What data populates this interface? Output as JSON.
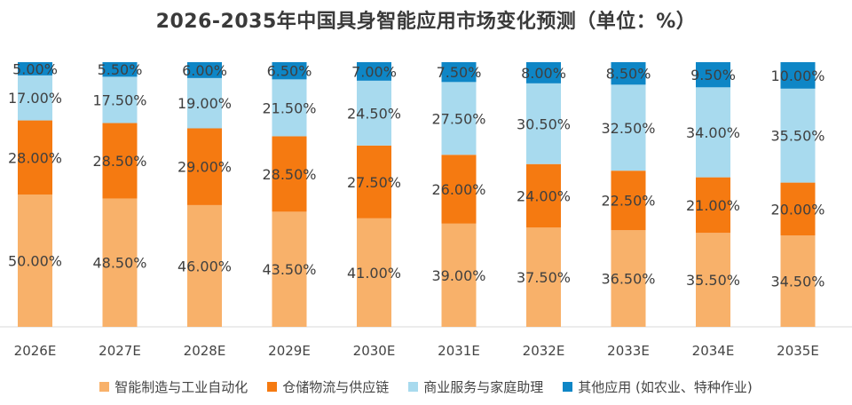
{
  "chart_data": {
    "type": "bar",
    "stacked": true,
    "title": "2026-2035年中国具身智能应用市场变化预测（单位：%）",
    "categories": [
      "2026E",
      "2027E",
      "2028E",
      "2029E",
      "2030E",
      "2031E",
      "2032E",
      "2033E",
      "2034E",
      "2035E"
    ],
    "ylim": [
      0,
      100
    ],
    "grid": false,
    "legend_position": "bottom",
    "series": [
      {
        "name": "智能制造与工业自动化",
        "color": "#F8B16A",
        "values": [
          50.0,
          48.5,
          46.0,
          43.5,
          41.0,
          39.0,
          37.5,
          36.5,
          35.5,
          34.5
        ],
        "labels": [
          "50.00%",
          "48.50%",
          "46.00%",
          "43.50%",
          "41.00%",
          "39.00%",
          "37.50%",
          "36.50%",
          "35.50%",
          "34.50%"
        ]
      },
      {
        "name": "仓储物流与供应链",
        "color": "#F57A11",
        "values": [
          28.0,
          28.5,
          29.0,
          28.5,
          27.5,
          26.0,
          24.0,
          22.5,
          21.0,
          20.0
        ],
        "labels": [
          "28.00%",
          "28.50%",
          "29.00%",
          "28.50%",
          "27.50%",
          "26.00%",
          "24.00%",
          "22.50%",
          "21.00%",
          "20.00%"
        ]
      },
      {
        "name": "商业服务与家庭助理",
        "color": "#A8DAEE",
        "values": [
          17.0,
          17.5,
          19.0,
          21.5,
          24.5,
          27.5,
          30.5,
          32.5,
          34.0,
          35.5
        ],
        "labels": [
          "17.00%",
          "17.50%",
          "19.00%",
          "21.50%",
          "24.50%",
          "27.50%",
          "30.50%",
          "32.50%",
          "34.00%",
          "35.50%"
        ]
      },
      {
        "name": "其他应用 (如农业、特种作业)",
        "color": "#0E86C6",
        "values": [
          5.0,
          5.5,
          6.0,
          6.5,
          7.0,
          7.5,
          8.0,
          8.5,
          9.5,
          10.0
        ],
        "labels": [
          "5.00%",
          "5.50%",
          "6.00%",
          "6.50%",
          "7.00%",
          "7.50%",
          "8.00%",
          "8.50%",
          "9.50%",
          "10.00%"
        ]
      }
    ]
  }
}
